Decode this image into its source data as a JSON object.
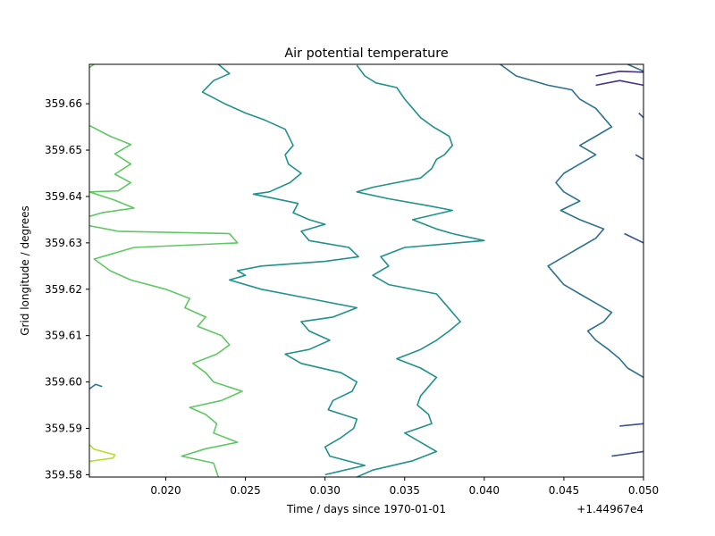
{
  "chart_data": {
    "type": "contour",
    "title": "Air potential temperature",
    "xlabel": "Time / days since 1970-01-01",
    "ylabel": "Grid longitude / degrees",
    "x_offset_label": "+1.44967e4",
    "xlim": [
      0.0152,
      0.05
    ],
    "ylim": [
      359.5795,
      359.6685
    ],
    "x_ticks": [
      0.02,
      0.025,
      0.03,
      0.035,
      0.04,
      0.045,
      0.05
    ],
    "x_tick_labels": [
      "0.020",
      "0.025",
      "0.030",
      "0.035",
      "0.040",
      "0.045",
      "0.050"
    ],
    "y_ticks": [
      359.58,
      359.59,
      359.6,
      359.61,
      359.62,
      359.63,
      359.64,
      359.65,
      359.66
    ],
    "y_tick_labels": [
      "359.58",
      "359.59",
      "359.60",
      "359.61",
      "359.62",
      "359.63",
      "359.64",
      "359.65",
      "359.66"
    ],
    "grid": false,
    "colormap": "viridis",
    "series": [
      {
        "color": "#2c7e8e",
        "points": [
          [
            0.0152,
            359.5985
          ],
          [
            0.0156,
            359.5995
          ],
          [
            0.016,
            359.599
          ]
        ]
      },
      {
        "color": "#b5de2b",
        "points": [
          [
            0.0152,
            359.5865
          ],
          [
            0.0155,
            359.5855
          ],
          [
            0.0168,
            359.5843
          ],
          [
            0.0167,
            359.5836
          ],
          [
            0.0152,
            359.5829
          ]
        ]
      },
      {
        "color": "#5ec962",
        "points": [
          [
            0.0152,
            359.6678
          ],
          [
            0.0155,
            359.6685
          ]
        ]
      },
      {
        "color": "#5ec962",
        "points": [
          [
            0.0152,
            359.6553
          ],
          [
            0.0165,
            359.653
          ],
          [
            0.0178,
            359.6512
          ],
          [
            0.0168,
            359.6492
          ],
          [
            0.0178,
            359.647
          ],
          [
            0.0168,
            359.6448
          ],
          [
            0.0178,
            359.643
          ],
          [
            0.017,
            359.6412
          ],
          [
            0.0152,
            359.641
          ],
          [
            0.0168,
            359.6392
          ],
          [
            0.018,
            359.6375
          ],
          [
            0.016,
            359.6365
          ],
          [
            0.014,
            359.6345
          ],
          [
            0.017,
            359.6325
          ],
          [
            0.024,
            359.632
          ],
          [
            0.0245,
            359.63
          ],
          [
            0.018,
            359.629
          ],
          [
            0.0155,
            359.6265
          ],
          [
            0.0165,
            359.624
          ],
          [
            0.0178,
            359.622
          ],
          [
            0.02,
            359.62
          ],
          [
            0.0215,
            359.618
          ],
          [
            0.0212,
            359.616
          ],
          [
            0.0225,
            359.614
          ],
          [
            0.022,
            359.612
          ],
          [
            0.0235,
            359.61
          ],
          [
            0.024,
            359.608
          ],
          [
            0.0232,
            359.606
          ],
          [
            0.0217,
            359.604
          ],
          [
            0.0225,
            359.602
          ],
          [
            0.023,
            359.6
          ],
          [
            0.0248,
            359.598
          ],
          [
            0.0235,
            359.596
          ],
          [
            0.0215,
            359.5945
          ],
          [
            0.0225,
            359.593
          ],
          [
            0.0232,
            359.591
          ],
          [
            0.023,
            359.589
          ],
          [
            0.0245,
            359.587
          ],
          [
            0.0225,
            359.5856
          ],
          [
            0.021,
            359.584
          ],
          [
            0.023,
            359.5825
          ],
          [
            0.0233,
            359.5795
          ]
        ]
      },
      {
        "color": "#21918c",
        "points": [
          [
            0.0233,
            359.6685
          ],
          [
            0.024,
            359.6665
          ],
          [
            0.023,
            359.665
          ],
          [
            0.0223,
            359.6625
          ],
          [
            0.0237,
            359.66
          ],
          [
            0.025,
            359.658
          ],
          [
            0.0262,
            359.6565
          ],
          [
            0.0275,
            359.6545
          ],
          [
            0.028,
            359.651
          ],
          [
            0.0275,
            359.649
          ],
          [
            0.0277,
            359.647
          ],
          [
            0.0285,
            359.645
          ],
          [
            0.0278,
            359.643
          ],
          [
            0.0265,
            359.641
          ],
          [
            0.0255,
            359.6405
          ],
          [
            0.0283,
            359.6385
          ],
          [
            0.028,
            359.6365
          ],
          [
            0.029,
            359.635
          ],
          [
            0.03,
            359.634
          ],
          [
            0.0285,
            359.6325
          ],
          [
            0.029,
            359.6305
          ],
          [
            0.0315,
            359.629
          ],
          [
            0.0321,
            359.627
          ],
          [
            0.03,
            359.626
          ],
          [
            0.026,
            359.625
          ],
          [
            0.0245,
            359.624
          ],
          [
            0.025,
            359.623
          ],
          [
            0.024,
            359.622
          ],
          [
            0.026,
            359.62
          ],
          [
            0.029,
            359.618
          ],
          [
            0.032,
            359.616
          ],
          [
            0.0305,
            359.614
          ],
          [
            0.0285,
            359.613
          ],
          [
            0.029,
            359.611
          ],
          [
            0.0303,
            359.609
          ],
          [
            0.029,
            359.607
          ],
          [
            0.0275,
            359.606
          ],
          [
            0.0285,
            359.604
          ],
          [
            0.031,
            359.602
          ],
          [
            0.032,
            359.6
          ],
          [
            0.0317,
            359.598
          ],
          [
            0.0305,
            359.596
          ],
          [
            0.0302,
            359.594
          ],
          [
            0.032,
            359.592
          ],
          [
            0.0318,
            359.59
          ],
          [
            0.031,
            359.588
          ],
          [
            0.03,
            359.586
          ],
          [
            0.0303,
            359.584
          ],
          [
            0.0325,
            359.582
          ],
          [
            0.03,
            359.58
          ]
        ]
      },
      {
        "color": "#21918c",
        "points": [
          [
            0.032,
            359.6683
          ],
          [
            0.0325,
            359.666
          ],
          [
            0.0332,
            359.6645
          ],
          [
            0.0345,
            359.6635
          ],
          [
            0.035,
            359.661
          ],
          [
            0.0355,
            359.659
          ],
          [
            0.036,
            359.657
          ],
          [
            0.0368,
            359.655
          ],
          [
            0.0378,
            359.653
          ],
          [
            0.038,
            359.651
          ],
          [
            0.0375,
            359.649
          ],
          [
            0.037,
            359.648
          ],
          [
            0.0367,
            359.646
          ],
          [
            0.036,
            359.644
          ],
          [
            0.0345,
            359.643
          ],
          [
            0.033,
            359.642
          ],
          [
            0.032,
            359.641
          ],
          [
            0.034,
            359.6395
          ],
          [
            0.0365,
            359.638
          ],
          [
            0.038,
            359.637
          ],
          [
            0.0355,
            359.635
          ],
          [
            0.037,
            359.633
          ],
          [
            0.038,
            359.632
          ],
          [
            0.04,
            359.6305
          ],
          [
            0.035,
            359.629
          ],
          [
            0.0335,
            359.627
          ],
          [
            0.034,
            359.625
          ],
          [
            0.033,
            359.623
          ],
          [
            0.034,
            359.621
          ],
          [
            0.037,
            359.619
          ],
          [
            0.0375,
            359.617
          ],
          [
            0.038,
            359.615
          ],
          [
            0.0385,
            359.613
          ],
          [
            0.0378,
            359.611
          ],
          [
            0.037,
            359.609
          ],
          [
            0.036,
            359.607
          ],
          [
            0.0345,
            359.605
          ],
          [
            0.036,
            359.603
          ],
          [
            0.037,
            359.601
          ],
          [
            0.0365,
            359.599
          ],
          [
            0.036,
            359.597
          ],
          [
            0.0358,
            359.595
          ],
          [
            0.0365,
            359.593
          ],
          [
            0.0367,
            359.591
          ],
          [
            0.035,
            359.589
          ],
          [
            0.036,
            359.587
          ],
          [
            0.037,
            359.585
          ],
          [
            0.0355,
            359.583
          ],
          [
            0.033,
            359.581
          ],
          [
            0.032,
            359.5795
          ]
        ]
      },
      {
        "color": "#2c728e",
        "points": [
          [
            0.041,
            359.6685
          ],
          [
            0.042,
            359.666
          ],
          [
            0.044,
            359.664
          ],
          [
            0.0455,
            359.663
          ],
          [
            0.046,
            359.661
          ],
          [
            0.047,
            359.659
          ],
          [
            0.0475,
            359.657
          ],
          [
            0.048,
            359.655
          ],
          [
            0.047,
            359.653
          ],
          [
            0.046,
            359.651
          ],
          [
            0.047,
            359.649
          ],
          [
            0.046,
            359.647
          ],
          [
            0.045,
            359.645
          ],
          [
            0.0445,
            359.643
          ],
          [
            0.045,
            359.641
          ],
          [
            0.046,
            359.639
          ],
          [
            0.0448,
            359.637
          ],
          [
            0.046,
            359.635
          ],
          [
            0.0475,
            359.633
          ],
          [
            0.047,
            359.631
          ],
          [
            0.046,
            359.629
          ],
          [
            0.045,
            359.627
          ],
          [
            0.044,
            359.625
          ],
          [
            0.0445,
            359.623
          ],
          [
            0.045,
            359.621
          ],
          [
            0.046,
            359.619
          ],
          [
            0.047,
            359.617
          ],
          [
            0.048,
            359.615
          ],
          [
            0.0475,
            359.613
          ],
          [
            0.0465,
            359.611
          ],
          [
            0.047,
            359.609
          ],
          [
            0.0478,
            359.607
          ],
          [
            0.0485,
            359.605
          ],
          [
            0.049,
            359.603
          ],
          [
            0.05,
            359.601
          ]
        ]
      },
      {
        "color": "#2c728e",
        "points": [
          [
            0.049,
            359.6685
          ],
          [
            0.05,
            359.667
          ]
        ]
      },
      {
        "color": "#3b528b",
        "points": [
          [
            0.05,
            359.591
          ],
          [
            0.0485,
            359.5905
          ]
        ]
      },
      {
        "color": "#3b528b",
        "points": [
          [
            0.05,
            359.585
          ],
          [
            0.048,
            359.584
          ]
        ]
      },
      {
        "color": "#3b528b",
        "points": [
          [
            0.05,
            359.648
          ],
          [
            0.0495,
            359.649
          ]
        ]
      },
      {
        "color": "#3b528b",
        "points": [
          [
            0.05,
            359.63
          ],
          [
            0.0488,
            359.632
          ]
        ]
      },
      {
        "color": "#3b528b",
        "points": [
          [
            0.05,
            359.657
          ],
          [
            0.0497,
            359.658
          ]
        ]
      },
      {
        "color": "#46327e",
        "points": [
          [
            0.047,
            359.664
          ],
          [
            0.0485,
            359.665
          ],
          [
            0.05,
            359.664
          ]
        ]
      },
      {
        "color": "#46327e",
        "points": [
          [
            0.047,
            359.666
          ],
          [
            0.0485,
            359.667
          ],
          [
            0.05,
            359.6668
          ]
        ]
      }
    ]
  }
}
